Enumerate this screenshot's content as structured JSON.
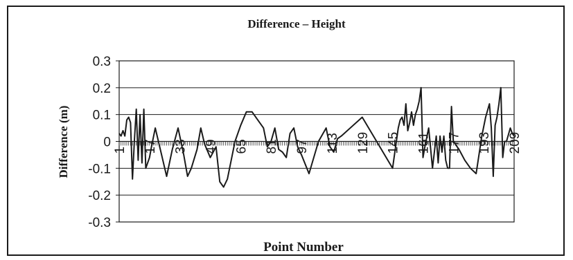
{
  "chart_data": {
    "type": "line",
    "title": "Difference – Height",
    "xlabel": "Point Number",
    "ylabel": "Difference (m)",
    "ylim": [
      -0.3,
      0.3
    ],
    "yticks": [
      "0.3",
      "0.2",
      "0.1",
      "0",
      "-0.1",
      "-0.2",
      "-0.3"
    ],
    "xlim": [
      1,
      209
    ],
    "xticks": [
      "1",
      "17",
      "33",
      "49",
      "65",
      "81",
      "97",
      "113",
      "129",
      "145",
      "161",
      "177",
      "193",
      "209"
    ],
    "grid": true,
    "legend": "none",
    "series": [
      {
        "x": [
          1,
          2,
          3,
          4,
          5,
          6,
          7,
          8,
          9,
          10,
          11,
          12,
          13,
          14,
          15,
          16,
          17,
          18,
          20,
          23,
          26,
          29,
          32,
          35,
          37,
          39,
          42,
          44,
          46,
          49,
          52,
          54,
          56,
          58,
          60,
          62,
          65,
          68,
          71,
          74,
          77,
          79,
          81,
          83,
          85,
          87,
          89,
          91,
          93,
          95,
          97,
          101,
          106,
          110,
          112,
          114,
          116,
          118,
          129,
          145,
          148,
          149,
          150,
          151,
          152,
          153,
          154,
          155,
          156,
          157,
          158,
          159,
          160,
          161,
          162,
          164,
          166,
          168,
          169,
          170,
          171,
          172,
          173,
          174,
          175,
          176,
          177,
          180,
          183,
          186,
          189,
          192,
          194,
          196,
          197,
          198,
          199,
          200,
          201,
          202,
          203,
          204,
          205,
          207,
          208,
          209
        ],
        "y": [
          0.03,
          0.02,
          0.04,
          0.02,
          0.08,
          0.09,
          0.07,
          -0.14,
          0.0,
          0.12,
          -0.07,
          0.1,
          -0.08,
          0.12,
          -0.1,
          -0.08,
          -0.06,
          -0.02,
          0.05,
          -0.04,
          -0.13,
          -0.03,
          0.05,
          -0.05,
          -0.13,
          -0.1,
          -0.03,
          0.05,
          -0.01,
          -0.06,
          -0.02,
          -0.15,
          -0.17,
          -0.14,
          -0.07,
          0.0,
          0.06,
          0.11,
          0.11,
          0.08,
          0.05,
          -0.02,
          0.0,
          0.05,
          -0.03,
          -0.04,
          -0.06,
          0.03,
          0.05,
          -0.02,
          -0.05,
          -0.12,
          0.0,
          0.05,
          -0.02,
          -0.04,
          0.01,
          0.02,
          0.09,
          -0.1,
          0.05,
          0.08,
          0.09,
          0.06,
          0.14,
          0.04,
          0.07,
          0.11,
          0.06,
          0.1,
          0.12,
          0.15,
          0.2,
          -0.06,
          -0.02,
          0.05,
          -0.1,
          0.02,
          -0.08,
          0.02,
          -0.04,
          0.02,
          -0.07,
          -0.1,
          -0.1,
          0.13,
          0.0,
          -0.03,
          -0.07,
          -0.1,
          -0.12,
          0.02,
          0.09,
          0.14,
          0.05,
          -0.13,
          0.06,
          0.09,
          0.14,
          0.2,
          -0.06,
          0.0,
          0.0,
          0.05,
          0.03,
          0.02
        ]
      }
    ]
  }
}
